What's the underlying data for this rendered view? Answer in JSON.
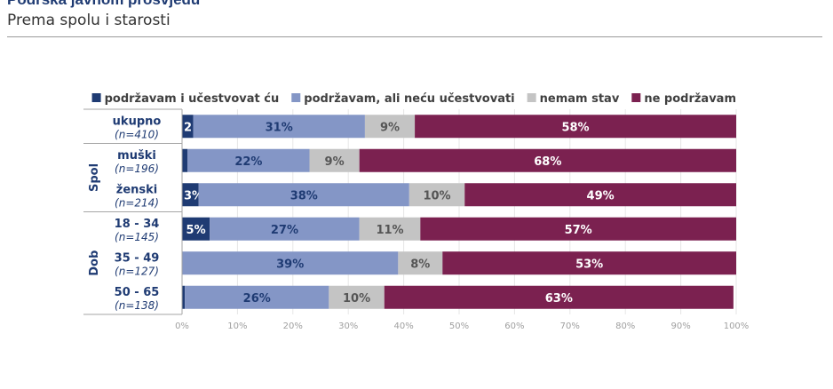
{
  "header": {
    "clipped_title": "Podrška javnom prosvjedu",
    "subtitle": "Prema spolu i starosti"
  },
  "chart_data": {
    "type": "bar",
    "orientation": "horizontal",
    "stacked": true,
    "title": "Podrška javnom prosvjedu",
    "subtitle": "Prema spolu i starosti",
    "legend_position": "top",
    "xlim": [
      0,
      100
    ],
    "x_ticks": [
      "0%",
      "10%",
      "20%",
      "30%",
      "40%",
      "50%",
      "60%",
      "70%",
      "80%",
      "90%",
      "100%"
    ],
    "grid": true,
    "groups": [
      {
        "label": "",
        "rows": [
          0
        ]
      },
      {
        "label": "Spol",
        "rows": [
          1,
          2
        ]
      },
      {
        "label": "Dob",
        "rows": [
          3,
          4,
          5
        ]
      }
    ],
    "categories": [
      {
        "label": "ukupno",
        "n": "(n=410)"
      },
      {
        "label": "muški",
        "n": "(n=196)"
      },
      {
        "label": "ženski",
        "n": "(n=214)"
      },
      {
        "label": "18 - 34",
        "n": "(n=145)"
      },
      {
        "label": "35 - 49",
        "n": "(n=127)"
      },
      {
        "label": "50 - 65",
        "n": "(n=138)"
      }
    ],
    "series": [
      {
        "name": "podržavam i učestvovat ću",
        "color": "#1f3b73",
        "text_color": "#ffffff",
        "values": [
          2,
          1,
          3,
          5,
          0,
          0.5
        ],
        "labels": [
          "2",
          "",
          "3%",
          "5%",
          "",
          ""
        ]
      },
      {
        "name": "podržavam, ali neću učestvovati",
        "color": "#8496c6",
        "text_color": "#1f3b73",
        "values": [
          31,
          22,
          38,
          27,
          39,
          26
        ],
        "labels": [
          "31%",
          "22%",
          "38%",
          "27%",
          "39%",
          "26%"
        ]
      },
      {
        "name": "nemam stav",
        "color": "#c4c4c4",
        "text_color": "#555555",
        "values": [
          9,
          9,
          10,
          11,
          8,
          10
        ],
        "labels": [
          "9%",
          "9%",
          "10%",
          "11%",
          "8%",
          "10%"
        ]
      },
      {
        "name": "ne podržavam",
        "color": "#7b2150",
        "text_color": "#ffffff",
        "values": [
          58,
          68,
          49,
          57,
          53,
          63
        ],
        "labels": [
          "58%",
          "68%",
          "49%",
          "57%",
          "53%",
          "63%"
        ]
      }
    ]
  }
}
